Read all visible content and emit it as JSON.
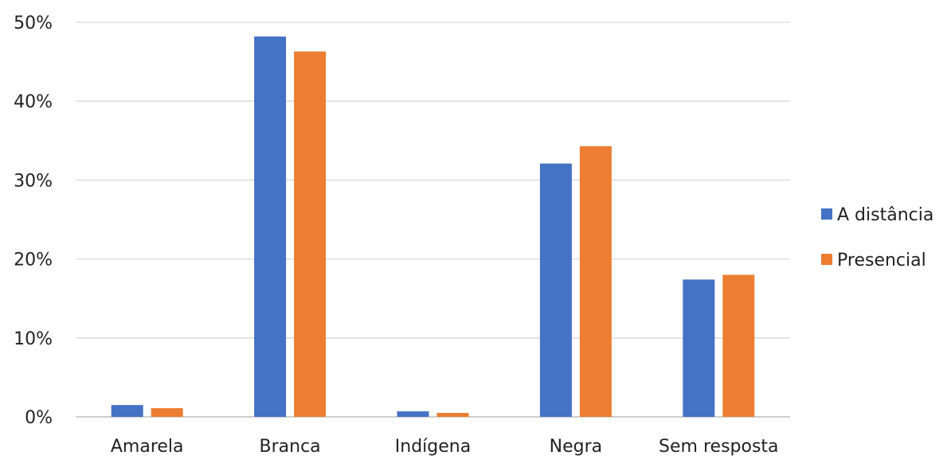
{
  "chart_data": {
    "type": "bar",
    "title": "",
    "xlabel": "",
    "ylabel": "",
    "categories": [
      "Amarela",
      "Branca",
      "Indígena",
      "Negra",
      "Sem resposta"
    ],
    "series": [
      {
        "name": "A distância",
        "color": "#4472C4",
        "values": [
          1.5,
          48.2,
          0.7,
          32.1,
          17.4
        ]
      },
      {
        "name": "Presencial",
        "color": "#ED7D31",
        "values": [
          1.1,
          46.3,
          0.5,
          34.3,
          18.0
        ]
      }
    ],
    "ylim": [
      0,
      50
    ],
    "yticks": [
      0,
      10,
      20,
      30,
      40,
      50
    ],
    "ytick_labels": [
      "0%",
      "10%",
      "20%",
      "30%",
      "40%",
      "50%"
    ],
    "y_unit": "%",
    "grid": true,
    "legend_position": "right"
  }
}
